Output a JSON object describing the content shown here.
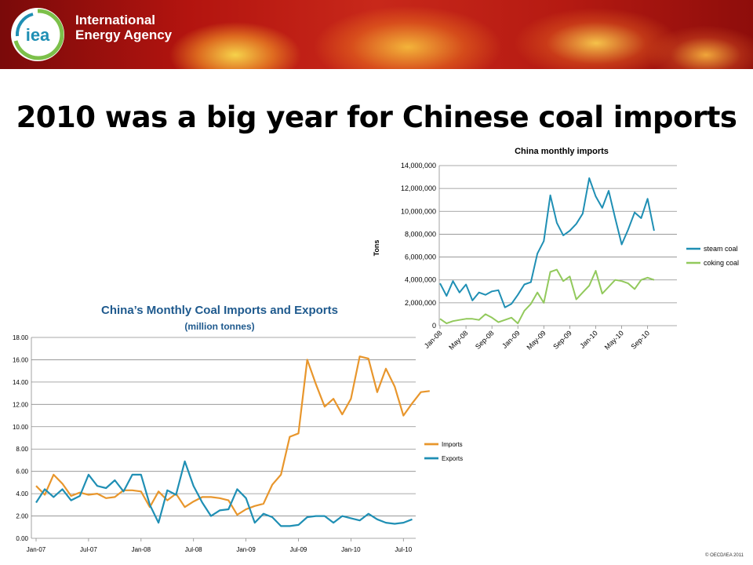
{
  "header": {
    "org_line1": "International",
    "org_line2": "Energy Agency",
    "logo_text": "iea"
  },
  "slide_title": "2010 was a big year for Chinese coal imports",
  "footer": {
    "copyright": "© OECD/IEA 2011"
  },
  "colors": {
    "steam_coal": "#1f8fb4",
    "coking_coal": "#92c95c",
    "imports": "#e8962c",
    "exports": "#1f8fb4"
  },
  "chart_data": [
    {
      "type": "line",
      "title": "China monthly imports",
      "xlabel": "",
      "ylabel": "Tons",
      "ylim": [
        0,
        14000000
      ],
      "yticks": [
        "0",
        "2,000,000",
        "4,000,000",
        "6,000,000",
        "8,000,000",
        "10,000,000",
        "12,000,000",
        "14,000,000"
      ],
      "x_tick_labels": [
        "Jan-08",
        "May-08",
        "Sep-08",
        "Jan-09",
        "May-09",
        "Sep-09",
        "Jan-10",
        "May-10",
        "Sep-10"
      ],
      "x_start": "Jan-08",
      "grid": true,
      "legend": "right",
      "series": [
        {
          "name": "steam coal",
          "values": [
            3700000,
            2600000,
            3900000,
            2900000,
            3600000,
            2200000,
            2900000,
            2700000,
            3000000,
            3100000,
            1600000,
            1900000,
            2700000,
            3600000,
            3800000,
            6300000,
            7400000,
            11400000,
            9000000,
            7900000,
            8300000,
            8900000,
            9800000,
            12900000,
            11300000,
            10300000,
            11800000,
            9400000,
            7100000,
            8400000,
            9900000,
            9400000,
            11100000,
            8300000
          ]
        },
        {
          "name": "coking coal",
          "values": [
            600000,
            200000,
            400000,
            500000,
            600000,
            600000,
            500000,
            1000000,
            700000,
            300000,
            500000,
            700000,
            200000,
            1300000,
            1900000,
            2900000,
            2000000,
            4700000,
            4900000,
            3900000,
            4300000,
            2300000,
            2900000,
            3500000,
            4800000,
            2800000,
            3400000,
            4000000,
            3900000,
            3700000,
            3200000,
            4000000,
            4200000,
            4000000
          ]
        }
      ]
    },
    {
      "type": "line",
      "title": "China’s  Monthly Coal Imports and Exports",
      "subtitle": "(million tonnes)",
      "xlabel": "",
      "ylabel": "",
      "ylim": [
        0,
        18
      ],
      "yticks": [
        "0.00",
        "2.00",
        "4.00",
        "6.00",
        "8.00",
        "10.00",
        "12.00",
        "14.00",
        "16.00",
        "18.00"
      ],
      "x_tick_labels": [
        "Jan-07",
        "Jul-07",
        "Jan-08",
        "Jul-08",
        "Jan-09",
        "Jul-09",
        "Jan-10",
        "Jul-10"
      ],
      "x_start": "Jan-07",
      "grid": true,
      "legend": "right",
      "series": [
        {
          "name": "Imports",
          "values": [
            4.7,
            3.9,
            5.7,
            4.9,
            3.8,
            4.1,
            3.9,
            4.0,
            3.6,
            3.7,
            4.3,
            4.3,
            4.2,
            2.8,
            4.2,
            3.4,
            4.0,
            2.8,
            3.3,
            3.7,
            3.7,
            3.6,
            3.4,
            2.1,
            2.6,
            2.9,
            3.1,
            4.8,
            5.7,
            9.1,
            9.4,
            16.0,
            13.8,
            11.8,
            12.5,
            11.1,
            12.5,
            16.3,
            16.1,
            13.1,
            15.2,
            13.6,
            11.0,
            12.1,
            13.1,
            13.2
          ]
        },
        {
          "name": "Exports",
          "values": [
            3.2,
            4.4,
            3.7,
            4.4,
            3.4,
            3.8,
            5.7,
            4.7,
            4.5,
            5.2,
            4.2,
            5.7,
            5.7,
            3.0,
            1.4,
            4.3,
            3.9,
            6.9,
            4.7,
            3.2,
            2.0,
            2.5,
            2.6,
            4.4,
            3.6,
            1.4,
            2.2,
            1.9,
            1.1,
            1.1,
            1.2,
            1.9,
            2.0,
            2.0,
            1.4,
            2.0,
            1.8,
            1.6,
            2.2,
            1.7,
            1.4,
            1.3,
            1.4,
            1.7
          ]
        }
      ]
    }
  ]
}
